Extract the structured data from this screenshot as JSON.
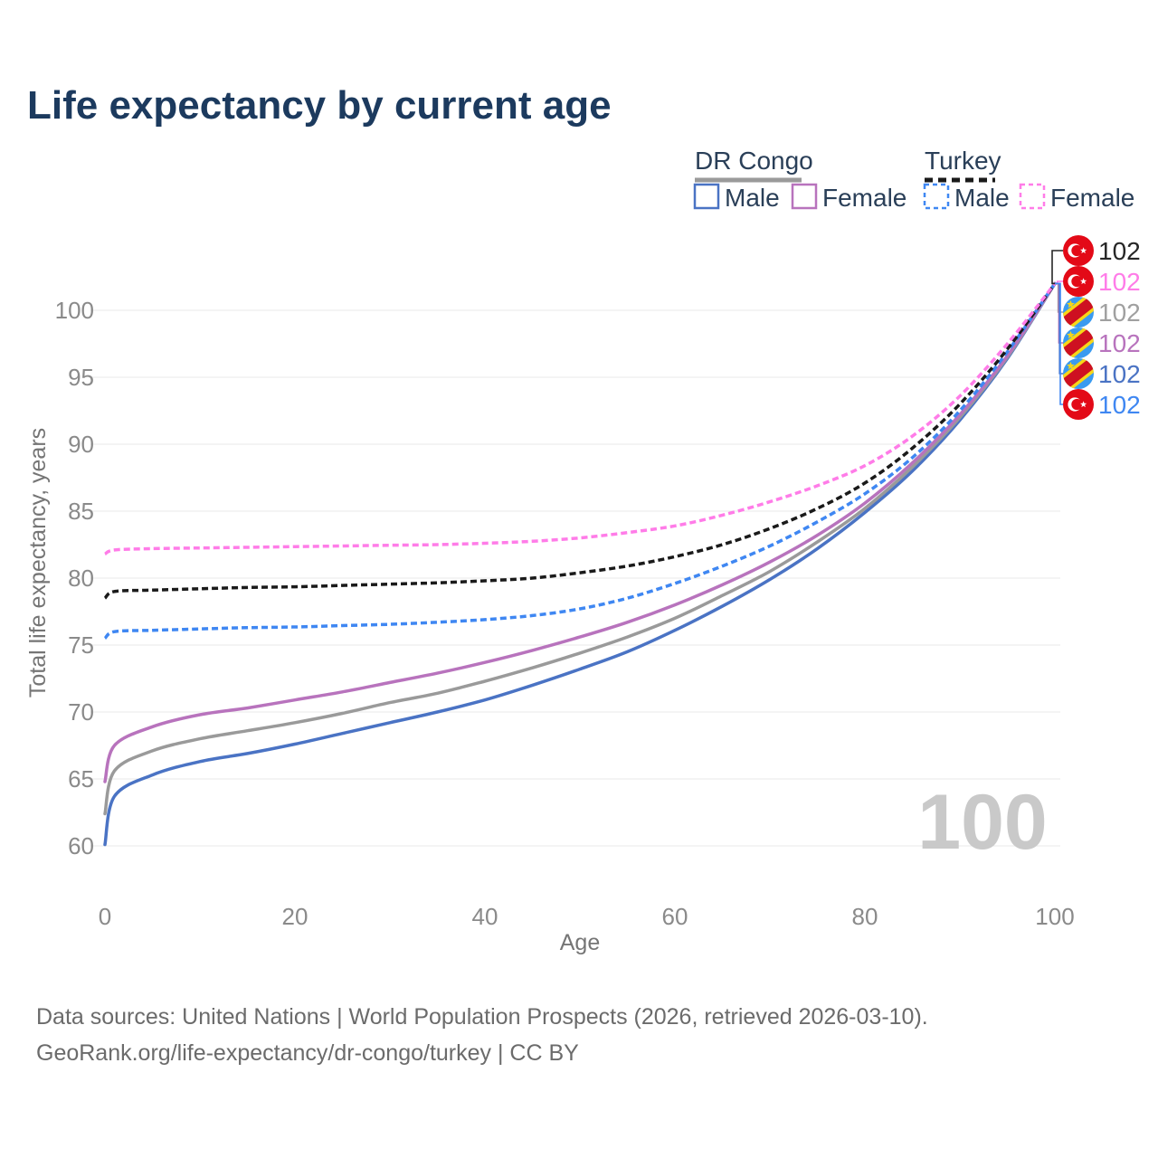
{
  "title": "Life expectancy by current age",
  "legend": {
    "groups": [
      {
        "label": "DR Congo",
        "line_style": "solid",
        "underline_color": "#9a9a9a",
        "items": [
          {
            "label": "Male",
            "color": "#4a73c4",
            "dashed": false
          },
          {
            "label": "Female",
            "color": "#b873bd",
            "dashed": false
          }
        ]
      },
      {
        "label": "Turkey",
        "line_style": "dashed",
        "underline_color": "#1a1a1a",
        "items": [
          {
            "label": "Male",
            "color": "#3f87f2",
            "dashed": true
          },
          {
            "label": "Female",
            "color": "#ff7ce8",
            "dashed": true
          }
        ]
      }
    ]
  },
  "axes": {
    "y_title": "Total life expectancy, years",
    "x_title": "Age",
    "y_ticks": [
      60,
      65,
      70,
      75,
      80,
      85,
      90,
      95,
      100
    ],
    "x_ticks": [
      0,
      20,
      40,
      60,
      80,
      100
    ]
  },
  "watermark": "100",
  "end_labels": [
    {
      "series": "Turkey",
      "flag": "turkey",
      "value": "102",
      "color": "#262626"
    },
    {
      "series": "Turkey Female",
      "flag": "turkey",
      "value": "102",
      "color": "#ff7ce8"
    },
    {
      "series": "DR Congo",
      "flag": "drcongo",
      "value": "102",
      "color": "#a0a0a0"
    },
    {
      "series": "DR Congo Female",
      "flag": "drcongo",
      "value": "102",
      "color": "#b873bd"
    },
    {
      "series": "DR Congo Male",
      "flag": "drcongo",
      "value": "102",
      "color": "#4a73c4"
    },
    {
      "series": "Turkey Male",
      "flag": "turkey",
      "value": "102",
      "color": "#3f87f2"
    }
  ],
  "footer": {
    "line1": "Data sources: United Nations | World Population Prospects (2026, retrieved 2026-03-10).",
    "line2": "GeoRank.org/life-expectancy/dr-congo/turkey | CC BY"
  },
  "colors": {
    "title": "#1c3a5e",
    "legend_text": "#2a3f58",
    "grid": "#e9e9e9",
    "tick_text": "#8a8a8a",
    "axis_title": "#757575",
    "watermark": "#c9c9c9",
    "footer": "#6b6b6b",
    "turkey_flag_red": "#e30a17",
    "drc_flag_blue": "#3a9af0",
    "drc_flag_yellow": "#f7d618",
    "drc_flag_red": "#ce1021"
  },
  "chart_data": {
    "type": "line",
    "title": "Life expectancy by current age",
    "xlabel": "Age",
    "ylabel": "Total life expectancy, years",
    "xlim": [
      0,
      100
    ],
    "ylim": [
      58.5,
      103.5
    ],
    "grid": true,
    "legend_position": "top-right",
    "x": [
      0,
      1,
      5,
      10,
      15,
      20,
      25,
      30,
      35,
      40,
      45,
      50,
      55,
      60,
      65,
      70,
      75,
      80,
      85,
      90,
      95,
      100
    ],
    "series": [
      {
        "name": "DR Congo Male",
        "color": "#4a73c4",
        "dashed": false,
        "values": [
          60.1,
          63.7,
          65.3,
          66.3,
          66.9,
          67.6,
          68.4,
          69.2,
          70.0,
          70.9,
          72.0,
          73.2,
          74.5,
          76.1,
          77.9,
          79.9,
          82.2,
          84.9,
          88.0,
          91.8,
          96.4,
          102
        ]
      },
      {
        "name": "DR Congo",
        "color": "#9a9a9a",
        "dashed": false,
        "values": [
          62.4,
          65.6,
          67.1,
          68.0,
          68.6,
          69.2,
          69.9,
          70.7,
          71.4,
          72.3,
          73.3,
          74.4,
          75.6,
          77.0,
          78.7,
          80.5,
          82.7,
          85.2,
          88.3,
          92.0,
          96.5,
          102
        ]
      },
      {
        "name": "DR Congo Female",
        "color": "#b873bd",
        "dashed": false,
        "values": [
          64.8,
          67.5,
          68.9,
          69.8,
          70.3,
          70.9,
          71.5,
          72.2,
          72.9,
          73.7,
          74.6,
          75.6,
          76.7,
          78.0,
          79.5,
          81.2,
          83.2,
          85.6,
          88.6,
          92.2,
          96.6,
          102
        ]
      },
      {
        "name": "Turkey Male",
        "color": "#3f87f2",
        "dashed": true,
        "values": [
          75.5,
          76.0,
          76.1,
          76.2,
          76.3,
          76.35,
          76.45,
          76.55,
          76.7,
          76.9,
          77.2,
          77.7,
          78.5,
          79.6,
          80.9,
          82.4,
          84.2,
          86.3,
          89.0,
          92.5,
          96.9,
          102
        ]
      },
      {
        "name": "Turkey",
        "color": "#1a1a1a",
        "dashed": true,
        "values": [
          78.5,
          79.0,
          79.1,
          79.2,
          79.3,
          79.35,
          79.45,
          79.55,
          79.65,
          79.8,
          80.0,
          80.4,
          80.9,
          81.6,
          82.5,
          83.7,
          85.2,
          87.1,
          89.7,
          93.0,
          97.1,
          102
        ]
      },
      {
        "name": "Turkey Female",
        "color": "#ff7ce8",
        "dashed": true,
        "values": [
          81.8,
          82.1,
          82.2,
          82.25,
          82.3,
          82.35,
          82.4,
          82.45,
          82.5,
          82.6,
          82.75,
          83.0,
          83.4,
          83.9,
          84.7,
          85.7,
          86.9,
          88.4,
          90.6,
          93.6,
          97.5,
          102
        ]
      }
    ]
  }
}
